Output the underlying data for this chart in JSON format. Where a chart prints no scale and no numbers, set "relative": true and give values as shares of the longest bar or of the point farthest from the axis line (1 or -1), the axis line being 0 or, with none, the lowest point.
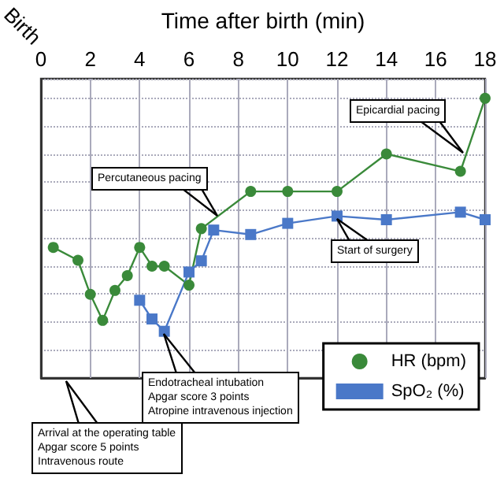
{
  "chart_data": {
    "type": "line",
    "xlabel": "Time after birth (min)",
    "relative": true,
    "xlim": [
      0,
      18
    ],
    "xticks": [
      0,
      2,
      4,
      6,
      8,
      10,
      12,
      14,
      16,
      18
    ],
    "grid": true,
    "legend": "bottom right",
    "line_style": "solid",
    "series": [
      {
        "name": "HR (bpm)",
        "color": "#3a8a3a",
        "marker": "circle",
        "x": [
          0.5,
          1.5,
          2,
          2.5,
          3,
          3.5,
          4,
          4.5,
          5,
          6,
          6.5,
          8.5,
          10,
          12,
          14,
          17,
          18
        ],
        "values": [
          0.467,
          0.421,
          0.299,
          0.206,
          0.313,
          0.366,
          0.467,
          0.4,
          0.4,
          0.332,
          0.534,
          0.667,
          0.667,
          0.667,
          0.801,
          0.739,
          1
        ]
      },
      {
        "name": "SpO₂ (%)",
        "color": "#4a78c8",
        "marker": "square",
        "x": [
          4,
          4.5,
          5,
          6,
          6.5,
          7,
          8.5,
          10,
          12,
          14,
          17,
          18
        ],
        "values": [
          0.278,
          0.211,
          0.167,
          0.379,
          0.419,
          0.529,
          0.513,
          0.553,
          0.579,
          0.566,
          0.593,
          0.566
        ]
      }
    ],
    "annotations": [
      "Birth",
      "Epicardial pacing",
      "Percutaneous pacing",
      "Start of surgery",
      "Endotracheal intubation\nApgar score 3 points\nAtropine intravenous injection",
      "Arrival at the operating table\nApgar score 5 points\nIntravenous route"
    ]
  }
}
